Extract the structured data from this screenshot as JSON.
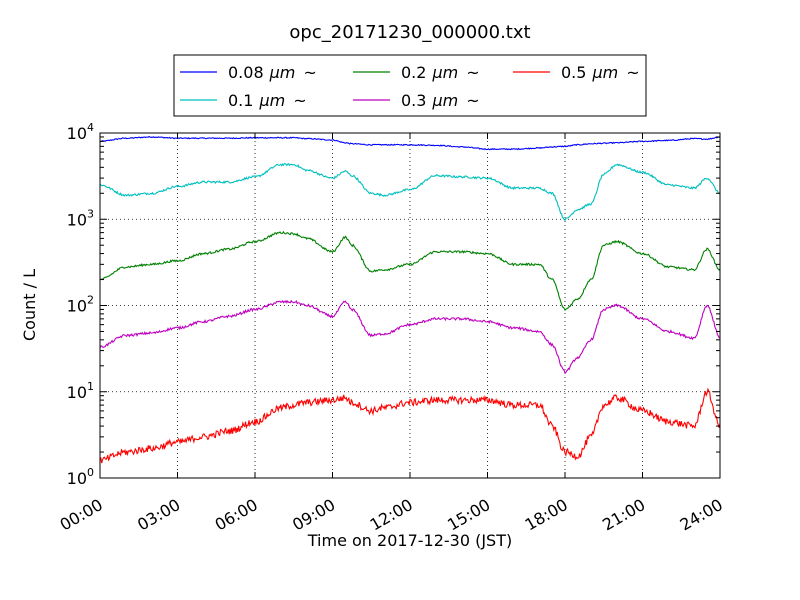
{
  "chart_data": {
    "type": "line",
    "title": "opc_20171230_000000.txt",
    "xlabel": "Time on 2017-12-30 (JST)",
    "ylabel": "Count / L",
    "y_scale": "log",
    "ylim": [
      1,
      10000
    ],
    "xlim": [
      "00:00",
      "24:00"
    ],
    "x_ticks": [
      "00:00",
      "03:00",
      "06:00",
      "09:00",
      "12:00",
      "15:00",
      "18:00",
      "21:00",
      "24:00"
    ],
    "y_ticks": [
      {
        "base": "10",
        "exp": "0"
      },
      {
        "base": "10",
        "exp": "1"
      },
      {
        "base": "10",
        "exp": "2"
      },
      {
        "base": "10",
        "exp": "3"
      },
      {
        "base": "10",
        "exp": "4"
      }
    ],
    "grid": true,
    "legend_position": "top",
    "legend_tilde": "~",
    "x": [
      "00:00",
      "01:00",
      "02:00",
      "03:00",
      "04:00",
      "05:00",
      "06:00",
      "07:00",
      "07:30",
      "08:00",
      "09:00",
      "09:30",
      "09:45",
      "10:30",
      "11:00",
      "12:00",
      "13:00",
      "14:00",
      "15:00",
      "16:00",
      "17:00",
      "17:30",
      "18:00",
      "18:30",
      "19:00",
      "19:30",
      "20:00",
      "21:00",
      "22:00",
      "23:00",
      "23:30",
      "24:00"
    ],
    "series": [
      {
        "name": "0.08",
        "unit": "μm",
        "color": "#0000ff",
        "values": [
          8000,
          8700,
          9000,
          8700,
          8700,
          8700,
          8800,
          8800,
          8800,
          8600,
          8300,
          7700,
          7500,
          7300,
          7300,
          7300,
          7200,
          6900,
          6500,
          6500,
          6700,
          6900,
          7000,
          7300,
          7500,
          7600,
          7700,
          8000,
          8200,
          8600,
          8500,
          9000
        ]
      },
      {
        "name": "0.1",
        "unit": "μm",
        "color": "#00bfbf",
        "values": [
          2500,
          1900,
          2000,
          2400,
          2700,
          2700,
          3100,
          4300,
          4300,
          3700,
          3000,
          3600,
          3200,
          2000,
          1900,
          2200,
          3200,
          3100,
          3000,
          2300,
          2300,
          2000,
          1000,
          1300,
          1500,
          3300,
          4300,
          3500,
          2500,
          2300,
          3000,
          2000
        ]
      },
      {
        "name": "0.2",
        "unit": "μm",
        "color": "#008000",
        "values": [
          200,
          280,
          300,
          330,
          400,
          450,
          550,
          700,
          680,
          600,
          420,
          620,
          500,
          250,
          260,
          300,
          420,
          420,
          400,
          300,
          300,
          200,
          90,
          120,
          200,
          500,
          550,
          400,
          280,
          260,
          450,
          260
        ]
      },
      {
        "name": "0.3",
        "unit": "μm",
        "color": "#bf00bf",
        "values": [
          33,
          45,
          48,
          55,
          65,
          75,
          90,
          110,
          110,
          100,
          75,
          110,
          90,
          45,
          47,
          60,
          70,
          70,
          65,
          55,
          50,
          35,
          17,
          25,
          40,
          90,
          100,
          70,
          50,
          42,
          100,
          43
        ]
      },
      {
        "name": "0.5",
        "unit": "μm",
        "color": "#ff0000",
        "values": [
          1.6,
          2.0,
          2.2,
          2.6,
          3.0,
          3.5,
          4.5,
          6.5,
          7.0,
          7.5,
          8.0,
          8.5,
          7.5,
          6.0,
          6.5,
          7.5,
          8.0,
          8.0,
          8.0,
          7.0,
          7.0,
          4.0,
          2.0,
          1.8,
          3.0,
          7.0,
          8.5,
          6.0,
          4.5,
          4.0,
          10.0,
          4.0
        ]
      }
    ]
  }
}
